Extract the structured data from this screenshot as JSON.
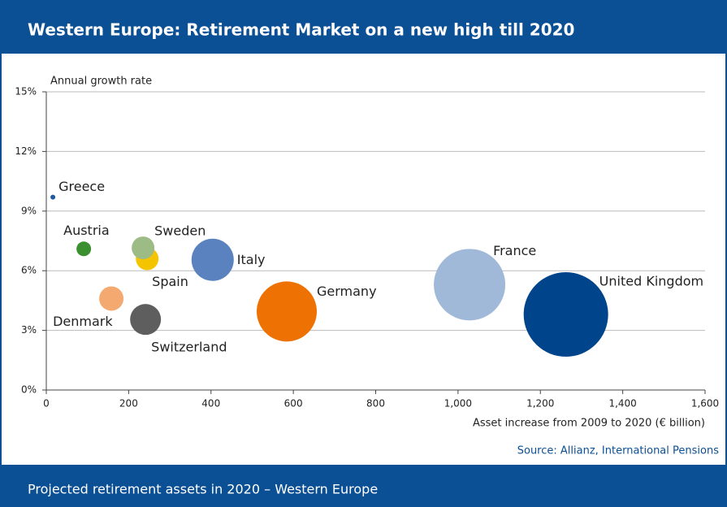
{
  "chart_data": {
    "type": "bubble",
    "title": "Western Europe: Retirement Market on a new high till 2020",
    "y_label": "Annual growth rate",
    "x_label": "Asset increase from 2009 to 2020 (€ billion)",
    "source": "Source: Allianz, International Pensions",
    "footer": "Projected retirement assets in 2020 – Western Europe",
    "categories": [
      "Greece",
      "Austria",
      "Spain",
      "Sweden",
      "Italy",
      "Denmark",
      "Switzerland",
      "Germany",
      "France",
      "United Kingdom"
    ],
    "x": [
      16,
      91,
      245,
      235,
      404,
      158,
      241,
      584,
      1028,
      1262
    ],
    "values": [
      9.7,
      7.1,
      6.6,
      7.15,
      6.55,
      4.6,
      3.55,
      3.95,
      5.3,
      3.8
    ],
    "sizes": [
      9,
      81,
      196,
      196,
      676,
      225,
      361,
      1369,
      1936,
      2704
    ],
    "colors": [
      "#1f5a9e",
      "#3a8f2e",
      "#f5c400",
      "#9dbb84",
      "#5a82be",
      "#f4a970",
      "#5e5e5e",
      "#ee7203",
      "#a0b9d8",
      "#00458b"
    ],
    "xlim": [
      0,
      1600
    ],
    "xticks": [
      0,
      200,
      400,
      600,
      800,
      {
        "value": 1000,
        "label": "1,000"
      },
      {
        "value": 1200,
        "label": "1,200"
      },
      {
        "value": 1400,
        "label": "1,400"
      },
      {
        "value": 1600,
        "label": "1,600"
      }
    ],
    "ylim": [
      0,
      15
    ],
    "yticks": [
      {
        "value": 0,
        "label": "0%"
      },
      {
        "value": 3,
        "label": "3%"
      },
      {
        "value": 6,
        "label": "6%"
      },
      {
        "value": 9,
        "label": "9%"
      },
      {
        "value": 12,
        "label": "12%"
      },
      {
        "value": 15,
        "label": "15%"
      }
    ],
    "grid": true
  }
}
